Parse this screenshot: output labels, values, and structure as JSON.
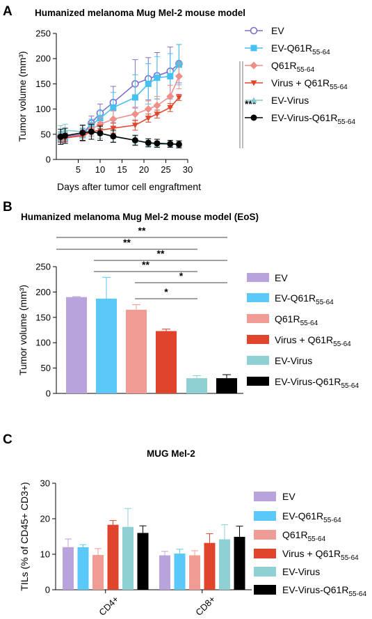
{
  "panels": {
    "a": {
      "letter": "A",
      "title": "Humanized melanoma Mug Mel-2  mouse model"
    },
    "b": {
      "letter": "B",
      "title": "Humanized melanoma Mug Mel-2  mouse model (EoS)"
    },
    "c": {
      "letter": "C",
      "title": "MUG Mel-2"
    }
  },
  "legend_entries": [
    {
      "main": "EV",
      "sub": "",
      "tail": ""
    },
    {
      "main": "EV-Q61R",
      "sub": "55-64",
      "tail": ""
    },
    {
      "main": "Q61R",
      "sub": "55-64",
      "tail": ""
    },
    {
      "main": "Virus + Q61R",
      "sub": "55-64",
      "tail": ""
    },
    {
      "main": "EV-Virus",
      "sub": "",
      "tail": ""
    },
    {
      "main": "EV-Virus-Q61R",
      "sub": "55-64",
      "tail": ""
    }
  ],
  "colors": {
    "EV": "#7a6fd0",
    "EV-Q61R": "#44c1f0",
    "Q61R": "#ee8f8a",
    "Virus+Q61R": "#e0452c",
    "EV-Virus": "#82c9cf",
    "EV-Virus-Q61R": "#000000",
    "bar_EV": "#b9a3dc",
    "bar_EV-Q61R": "#5bc9f7",
    "bar_Q61R": "#f19b95",
    "bar_Virus+Q61R": "#e0452c",
    "bar_EV-Virus": "#8ed0d4",
    "bar_EV-Virus-Q61R": "#000000"
  },
  "chart_data": [
    {
      "type": "line",
      "xlabel": "Days after tumor cell engraftment",
      "ylabel": "Tumor volume (mm³)",
      "xlim": [
        0,
        30
      ],
      "ylim": [
        0,
        250
      ],
      "xticks": [
        5,
        10,
        15,
        20,
        25,
        30
      ],
      "yticks": [
        0,
        50,
        100,
        150,
        200,
        250
      ],
      "x": [
        1,
        2,
        6,
        8,
        10,
        13,
        18,
        21,
        23,
        26,
        28
      ],
      "significance": "***",
      "series": [
        {
          "name": "EV",
          "marker": "open-circle",
          "values": [
            45,
            45,
            50,
            72,
            92,
            113,
            150,
            160,
            166,
            175,
            190
          ],
          "err": [
            10,
            10,
            12,
            14,
            18,
            32,
            48,
            42,
            46,
            48,
            38
          ]
        },
        {
          "name": "EV-Q61R55-64",
          "marker": "square",
          "values": [
            40,
            42,
            48,
            68,
            82,
            103,
            123,
            150,
            162,
            165,
            188
          ],
          "err": [
            10,
            10,
            12,
            12,
            15,
            30,
            45,
            40,
            42,
            45,
            40
          ]
        },
        {
          "name": "Q61R55-64",
          "marker": "diamond",
          "values": [
            42,
            44,
            48,
            60,
            70,
            80,
            90,
            100,
            107,
            125,
            165
          ],
          "err": [
            8,
            8,
            10,
            12,
            14,
            16,
            14,
            16,
            18,
            22,
            25
          ]
        },
        {
          "name": "Virus + Q61R55-64",
          "marker": "triangle-down",
          "values": [
            42,
            43,
            47,
            55,
            58,
            62,
            68,
            82,
            90,
            103,
            123
          ],
          "err": [
            8,
            8,
            10,
            10,
            10,
            10,
            10,
            8,
            8,
            8,
            6
          ]
        },
        {
          "name": "EV-Virus",
          "marker": "triangle-up",
          "values": [
            55,
            58,
            55,
            55,
            52,
            45,
            38,
            32,
            30,
            30,
            30
          ],
          "err": [
            12,
            12,
            12,
            10,
            10,
            10,
            8,
            6,
            6,
            6,
            6
          ]
        },
        {
          "name": "EV-Virus-Q61R55-64",
          "marker": "filled-circle",
          "values": [
            45,
            47,
            53,
            55,
            52,
            46,
            38,
            33,
            32,
            31,
            30
          ],
          "err": [
            15,
            15,
            15,
            15,
            14,
            12,
            10,
            8,
            8,
            7,
            7
          ]
        }
      ]
    },
    {
      "type": "bar",
      "ylabel": "Tumor volume (mm³)",
      "ylim": [
        0,
        250
      ],
      "yticks": [
        0,
        50,
        100,
        150,
        200,
        250
      ],
      "categories": [
        "EV",
        "EV-Q61R55-64",
        "Q61R55-64",
        "Virus + Q61R55-64",
        "EV-Virus",
        "EV-Virus-Q61R55-64"
      ],
      "values": [
        190,
        187,
        165,
        123,
        30,
        30
      ],
      "err": [
        1,
        42,
        10,
        4,
        5,
        7
      ],
      "brackets": [
        {
          "from": 0,
          "to": 5,
          "label": "**"
        },
        {
          "from": 0,
          "to": 4,
          "label": "**"
        },
        {
          "from": 1,
          "to": 5,
          "label": "**"
        },
        {
          "from": 1,
          "to": 4,
          "label": "**"
        },
        {
          "from": 2,
          "to": 5,
          "label": "*"
        },
        {
          "from": 2,
          "to": 4,
          "label": "*"
        }
      ]
    },
    {
      "type": "bar",
      "ylabel": "TILs (% of CD45+ CD3+)",
      "ylim": [
        0,
        30
      ],
      "yticks": [
        0,
        10,
        20,
        30
      ],
      "categories": [
        "CD4+",
        "CD8+"
      ],
      "series": [
        {
          "name": "EV",
          "values": [
            12.0,
            9.7
          ],
          "err": [
            2.3,
            1.1
          ]
        },
        {
          "name": "EV-Q61R55-64",
          "values": [
            12.0,
            10.2
          ],
          "err": [
            0.7,
            1.2
          ]
        },
        {
          "name": "Q61R55-64",
          "values": [
            9.8,
            9.7
          ],
          "err": [
            1.8,
            1.3
          ]
        },
        {
          "name": "Virus + Q61R55-64",
          "values": [
            18.3,
            13.2
          ],
          "err": [
            1.2,
            2.6
          ]
        },
        {
          "name": "EV-Virus",
          "values": [
            17.7,
            14.2
          ],
          "err": [
            5.2,
            4.1
          ]
        },
        {
          "name": "EV-Virus-Q61R55-64",
          "values": [
            16.0,
            14.9
          ],
          "err": [
            2.0,
            3.0
          ]
        }
      ]
    }
  ]
}
